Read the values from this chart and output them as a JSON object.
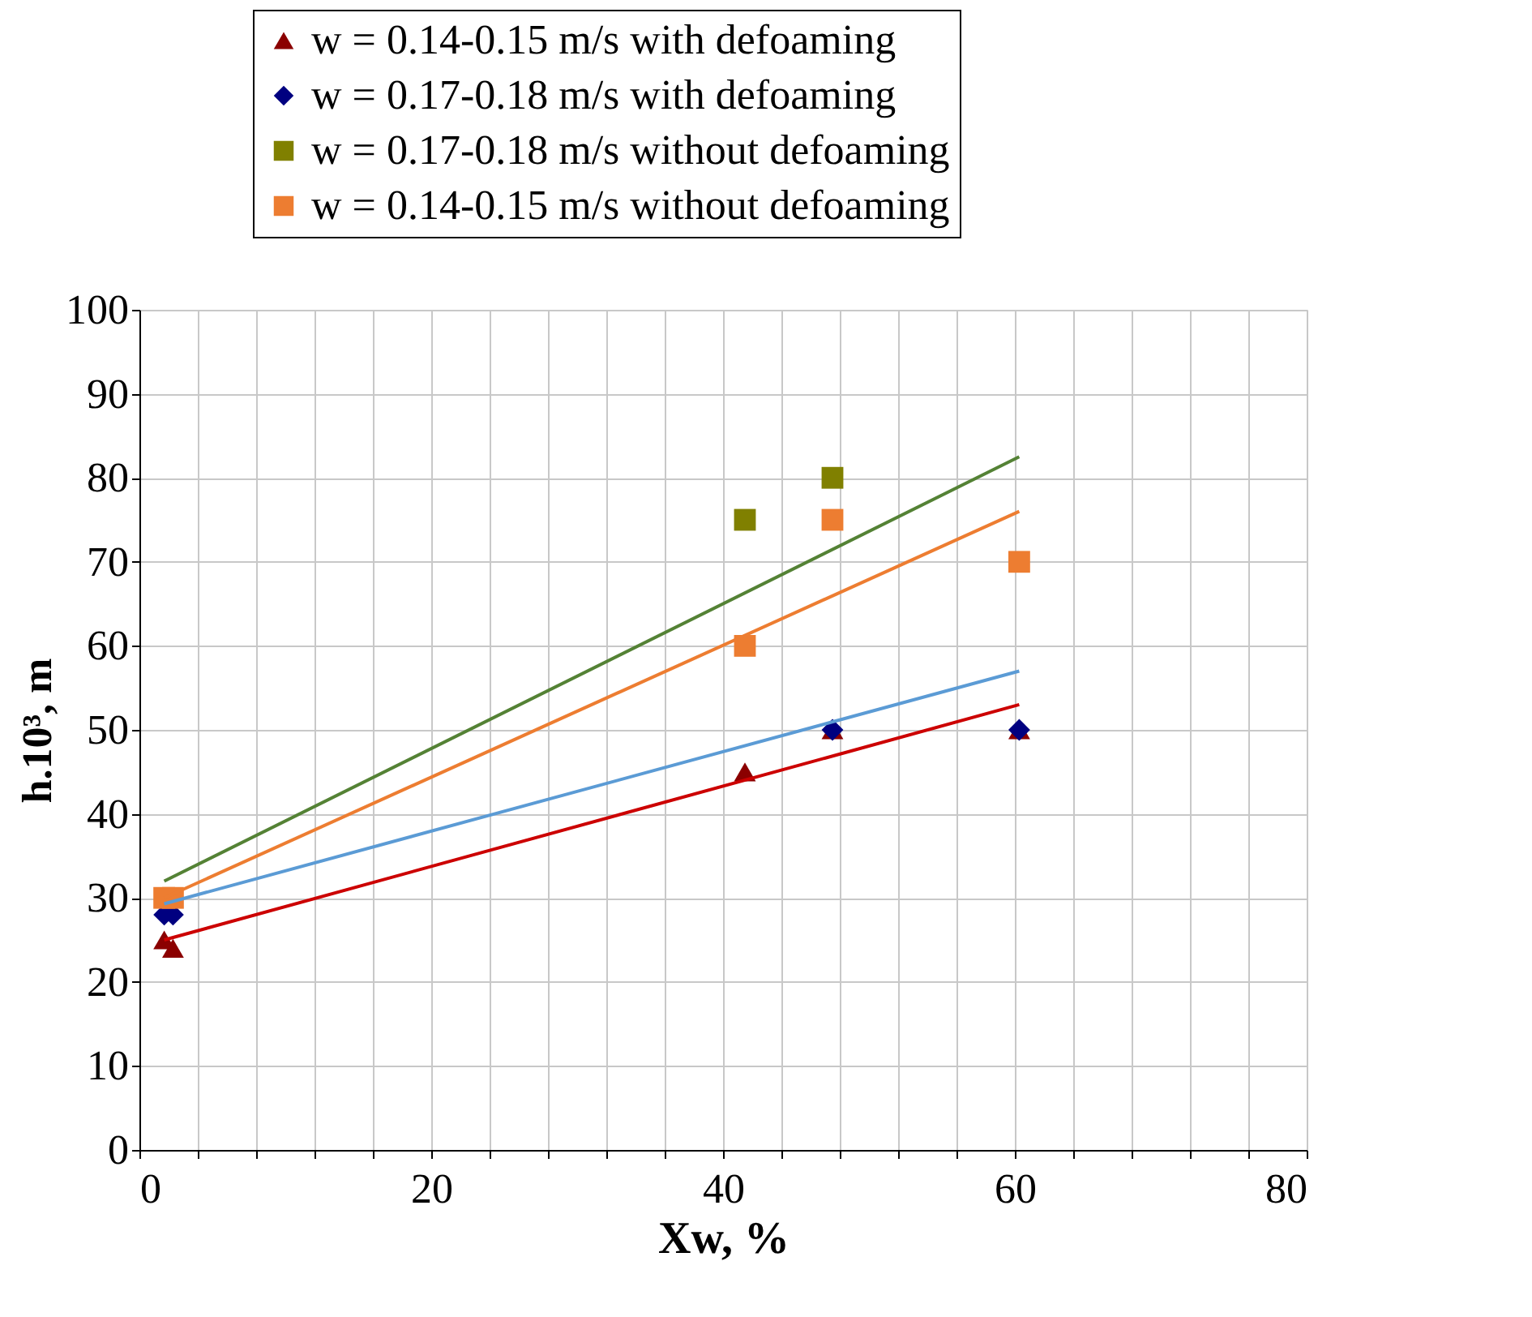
{
  "chart_data": {
    "type": "scatter",
    "xlabel": "Xw, %",
    "ylabel": "h.10³, m",
    "xlim": [
      0,
      80
    ],
    "ylim": [
      0,
      100
    ],
    "xticks": [
      0,
      {
        "value": 4,
        "label": null
      },
      {
        "value": 8,
        "label": null
      },
      {
        "value": 12,
        "label": null
      },
      {
        "value": 16,
        "label": null
      },
      20,
      {
        "value": 24,
        "label": null
      },
      {
        "value": 28,
        "label": null
      },
      {
        "value": 32,
        "label": null
      },
      {
        "value": 36,
        "label": null
      },
      40,
      {
        "value": 44,
        "label": null
      },
      {
        "value": 48,
        "label": null
      },
      {
        "value": 52,
        "label": null
      },
      {
        "value": 56,
        "label": null
      },
      60,
      {
        "value": 64,
        "label": null
      },
      {
        "value": 68,
        "label": null
      },
      {
        "value": 72,
        "label": null
      },
      {
        "value": 76,
        "label": null
      },
      80
    ],
    "yticks": [
      0,
      10,
      20,
      30,
      40,
      50,
      60,
      70,
      80,
      90,
      100
    ],
    "grid": true,
    "legend": "top",
    "series": [
      {
        "name": "w = 0.14-0.15 m/s with defoaming",
        "color": "#8b0000",
        "marker": "triangle",
        "x": [
          1.7,
          2.3,
          41.5,
          47.5,
          60.3
        ],
        "values": [
          25,
          24,
          45,
          50,
          50
        ]
      },
      {
        "name": "w = 0.17-0.18 m/s with defoaming",
        "color": "#000080",
        "marker": "diamond",
        "x": [
          1.7,
          2.3,
          41.5,
          47.5,
          60.3
        ],
        "values": [
          28,
          28,
          null,
          50,
          50
        ]
      },
      {
        "name": "w = 0.17-0.18 m/s without defoaming",
        "color": "#808000",
        "marker": "square",
        "x": [
          41.5,
          47.5
        ],
        "values": [
          75,
          80
        ]
      },
      {
        "name": "w = 0.14-0.15 m/s without defoaming",
        "color": "#ed7d31",
        "marker": "square",
        "x": [
          1.7,
          2.3,
          41.5,
          47.5,
          60.3
        ],
        "values": [
          30,
          30,
          60,
          75,
          70
        ]
      },
      {
        "type": "line",
        "color": "#cc0000",
        "marker": "none",
        "x": [
          1.7,
          60.3
        ],
        "values": [
          25,
          53
        ]
      },
      {
        "type": "line",
        "color": "#5b9bd5",
        "marker": "none",
        "x": [
          1.7,
          60.3
        ],
        "values": [
          29.3,
          57
        ]
      },
      {
        "type": "line",
        "color": "#ed7d31",
        "marker": "none",
        "x": [
          1.7,
          60.3
        ],
        "values": [
          30,
          76
        ]
      },
      {
        "type": "line",
        "color": "#548235",
        "marker": "none",
        "x": [
          1.7,
          60.3
        ],
        "values": [
          32,
          82.5
        ]
      }
    ]
  }
}
